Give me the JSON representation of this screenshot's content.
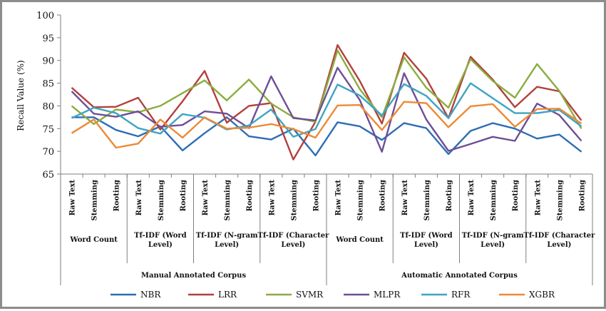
{
  "chart_data": {
    "type": "line",
    "title": "",
    "ylabel": "Recall Value (%)",
    "ylim": [
      65,
      100
    ],
    "yticks": [
      65,
      70,
      75,
      80,
      85,
      90,
      95,
      100
    ],
    "grid": false,
    "legend_position": "bottom",
    "categories": [
      "Raw Text",
      "Stemming",
      "Rooting",
      "Raw Text",
      "Stemming",
      "Rooting",
      "Raw Text",
      "Stemming",
      "Rooting",
      "Raw Text",
      "Stemming",
      "Rooting",
      "Raw Text",
      "Stemming",
      "Rooting",
      "Raw Text",
      "Stemming",
      "Rooting",
      "Raw Text",
      "Stemming",
      "Rooting",
      "Raw Text",
      "Stemming",
      "Rooting"
    ],
    "groups": [
      {
        "label": [
          "Word Count"
        ]
      },
      {
        "label": [
          "Tf-IDF (Word",
          "Level)"
        ]
      },
      {
        "label": [
          "Tf-IDF (N-gram",
          "Level)"
        ]
      },
      {
        "label": [
          "Tf-IDF (Character",
          "Level)"
        ]
      },
      {
        "label": [
          "Word Count"
        ]
      },
      {
        "label": [
          "Tf-IDF (Word",
          "Level)"
        ]
      },
      {
        "label": [
          "Tf-IDF (N-gram",
          "Level)"
        ]
      },
      {
        "label": [
          "Tf-IDF (Character",
          "Level)"
        ]
      }
    ],
    "corpora": [
      "Manual Annotated Corpus",
      "Automatic Annotated Corpus"
    ],
    "series": [
      {
        "name": "NBR",
        "color": "#2e6db5",
        "values": [
          77.5,
          77.5,
          74.7,
          73.3,
          75.5,
          70.2,
          74.0,
          77.5,
          73.3,
          72.6,
          75.0,
          69.1,
          76.4,
          75.5,
          72.5,
          76.2,
          75.1,
          69.4,
          74.5,
          76.2,
          75.0,
          72.8,
          73.7,
          69.9
        ]
      },
      {
        "name": "LRR",
        "color": "#b2403c",
        "values": [
          84.0,
          79.7,
          79.8,
          81.8,
          74.8,
          81.0,
          87.7,
          76.3,
          80.0,
          80.6,
          68.2,
          76.5,
          93.4,
          85.5,
          76.1,
          91.7,
          86.0,
          77.3,
          90.8,
          85.8,
          79.7,
          84.2,
          83.2,
          76.8
        ]
      },
      {
        "name": "SVMR",
        "color": "#8aad3e",
        "values": [
          80.0,
          76.0,
          79.2,
          78.6,
          80.0,
          82.8,
          85.6,
          81.2,
          85.8,
          80.5,
          77.5,
          76.5,
          92.2,
          83.7,
          77.5,
          90.7,
          84.0,
          79.6,
          90.3,
          85.5,
          81.8,
          89.2,
          83.3,
          75.0
        ]
      },
      {
        "name": "MLPR",
        "color": "#6e4e97",
        "values": [
          83.2,
          78.3,
          77.6,
          78.8,
          75.4,
          75.8,
          78.8,
          78.3,
          75.1,
          86.5,
          77.3,
          76.8,
          88.4,
          81.3,
          69.9,
          87.2,
          77.0,
          70.1,
          71.6,
          73.2,
          72.3,
          80.5,
          78.0,
          72.3
        ]
      },
      {
        "name": "RFR",
        "color": "#3ea4c2",
        "values": [
          77.3,
          79.6,
          78.4,
          75.1,
          73.9,
          78.2,
          77.4,
          74.8,
          75.7,
          79.2,
          73.2,
          74.9,
          84.7,
          82.3,
          77.9,
          84.8,
          82.2,
          77.3,
          85.0,
          81.7,
          78.4,
          78.4,
          79.1,
          75.5
        ]
      },
      {
        "name": "XGBR",
        "color": "#ec8a35",
        "values": [
          74.0,
          77.0,
          70.8,
          71.7,
          77.0,
          73.0,
          77.5,
          75.0,
          75.2,
          76.0,
          74.9,
          73.0,
          80.1,
          80.2,
          74.7,
          80.9,
          80.6,
          75.3,
          79.9,
          80.4,
          75.4,
          79.3,
          79.4,
          76.1
        ]
      }
    ]
  }
}
